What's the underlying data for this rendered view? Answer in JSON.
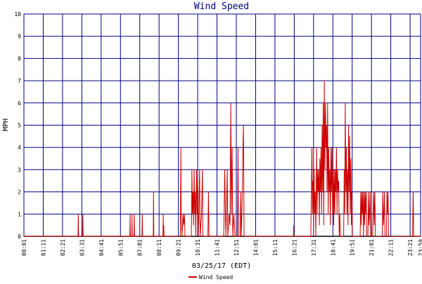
{
  "chart_data": {
    "type": "line",
    "title": "Wind Speed",
    "ylabel": "MPH",
    "xlabel": "03/25/17 (EDT)",
    "ylim": [
      0,
      10
    ],
    "yticks": [
      "0",
      "1",
      "2",
      "3",
      "4",
      "5",
      "6",
      "7",
      "8",
      "9",
      "10"
    ],
    "x_start": "00:01",
    "x_end": "23:59",
    "xticks": [
      "00:01",
      "01:11",
      "02:21",
      "03:31",
      "04:41",
      "05:51",
      "07:01",
      "08:11",
      "09:21",
      "10:31",
      "11:41",
      "12:51",
      "14:01",
      "15:11",
      "16:21",
      "17:31",
      "18:41",
      "19:51",
      "21:01",
      "22:11",
      "23:21",
      "23:59"
    ],
    "grid": true,
    "legend_position": "bottom-center",
    "colors": {
      "series": "#cc0000",
      "grid": "#000080",
      "axis": "#000000",
      "title": "#000080"
    },
    "series": [
      {
        "name": "Wind Speed",
        "points": [
          [
            "00:01",
            0
          ],
          [
            "03:17",
            0
          ],
          [
            "03:18",
            1
          ],
          [
            "03:19",
            0
          ],
          [
            "03:34",
            0
          ],
          [
            "03:35",
            1
          ],
          [
            "03:36",
            0
          ],
          [
            "06:25",
            0
          ],
          [
            "06:26",
            1
          ],
          [
            "06:27",
            0
          ],
          [
            "06:32",
            0
          ],
          [
            "06:33",
            1
          ],
          [
            "06:34",
            0
          ],
          [
            "06:40",
            0
          ],
          [
            "06:41",
            1
          ],
          [
            "06:42",
            0
          ],
          [
            "07:09",
            0
          ],
          [
            "07:10",
            1
          ],
          [
            "07:11",
            0
          ],
          [
            "07:50",
            0
          ],
          [
            "07:51",
            2
          ],
          [
            "07:52",
            0
          ],
          [
            "08:25",
            0
          ],
          [
            "08:26",
            1
          ],
          [
            "08:27",
            0
          ],
          [
            "08:28",
            0.5
          ],
          [
            "08:29",
            0
          ],
          [
            "09:28",
            0
          ],
          [
            "09:29",
            2
          ],
          [
            "09:30",
            4
          ],
          [
            "09:31",
            1
          ],
          [
            "09:34",
            0
          ],
          [
            "09:38",
            1
          ],
          [
            "09:40",
            0.5
          ],
          [
            "09:43",
            1
          ],
          [
            "09:45",
            0
          ],
          [
            "10:08",
            0
          ],
          [
            "10:10",
            3
          ],
          [
            "10:12",
            1
          ],
          [
            "10:14",
            2
          ],
          [
            "10:16",
            0.5
          ],
          [
            "10:18",
            3
          ],
          [
            "10:20",
            1
          ],
          [
            "10:22",
            2
          ],
          [
            "10:24",
            0
          ],
          [
            "10:27",
            3
          ],
          [
            "10:29",
            1
          ],
          [
            "10:31",
            2.5
          ],
          [
            "10:33",
            0
          ],
          [
            "10:35",
            1
          ],
          [
            "10:38",
            3
          ],
          [
            "10:40",
            0
          ],
          [
            "10:45",
            1
          ],
          [
            "10:48",
            3
          ],
          [
            "10:50",
            0
          ],
          [
            "11:08",
            0
          ],
          [
            "11:10",
            2
          ],
          [
            "11:12",
            0
          ],
          [
            "12:05",
            0
          ],
          [
            "12:07",
            1
          ],
          [
            "12:09",
            3
          ],
          [
            "12:11",
            1.5
          ],
          [
            "12:13",
            0
          ],
          [
            "12:15",
            1
          ],
          [
            "12:18",
            3
          ],
          [
            "12:20",
            0
          ],
          [
            "12:25",
            1
          ],
          [
            "12:28",
            0.5
          ],
          [
            "12:31",
            6
          ],
          [
            "12:33",
            1
          ],
          [
            "12:36",
            4
          ],
          [
            "12:38",
            0
          ],
          [
            "12:42",
            1
          ],
          [
            "12:44",
            0.5
          ],
          [
            "12:46",
            0
          ],
          [
            "12:55",
            0
          ],
          [
            "12:57",
            4
          ],
          [
            "12:59",
            0
          ],
          [
            "13:05",
            0
          ],
          [
            "13:07",
            2
          ],
          [
            "13:09",
            0
          ],
          [
            "13:13",
            2
          ],
          [
            "13:15",
            4
          ],
          [
            "13:17",
            5
          ],
          [
            "13:19",
            0
          ],
          [
            "16:18",
            0
          ],
          [
            "16:19",
            0.5
          ],
          [
            "16:20",
            0
          ],
          [
            "17:21",
            0
          ],
          [
            "17:23",
            2
          ],
          [
            "17:25",
            4
          ],
          [
            "17:27",
            1
          ],
          [
            "17:29",
            2.5
          ],
          [
            "17:31",
            0.5
          ],
          [
            "17:33",
            3
          ],
          [
            "17:35",
            1
          ],
          [
            "17:37",
            2
          ],
          [
            "17:39",
            0
          ],
          [
            "17:42",
            4
          ],
          [
            "17:44",
            1
          ],
          [
            "17:46",
            3
          ],
          [
            "17:48",
            2
          ],
          [
            "17:50",
            3
          ],
          [
            "17:52",
            0.5
          ],
          [
            "17:54",
            3.5
          ],
          [
            "17:56",
            2
          ],
          [
            "17:58",
            4
          ],
          [
            "18:00",
            1
          ],
          [
            "18:02",
            5
          ],
          [
            "18:04",
            2
          ],
          [
            "18:06",
            6
          ],
          [
            "18:08",
            0.5
          ],
          [
            "18:10",
            7
          ],
          [
            "18:12",
            3
          ],
          [
            "18:14",
            6
          ],
          [
            "18:16",
            4
          ],
          [
            "18:18",
            5
          ],
          [
            "18:20",
            2
          ],
          [
            "18:22",
            6
          ],
          [
            "18:24",
            1
          ],
          [
            "18:26",
            4
          ],
          [
            "18:28",
            2
          ],
          [
            "18:30",
            3
          ],
          [
            "18:32",
            0.5
          ],
          [
            "18:34",
            4
          ],
          [
            "18:36",
            2
          ],
          [
            "18:38",
            4
          ],
          [
            "18:40",
            1
          ],
          [
            "18:42",
            3
          ],
          [
            "18:44",
            0.5
          ],
          [
            "18:46",
            3
          ],
          [
            "18:48",
            1
          ],
          [
            "18:50",
            3
          ],
          [
            "18:52",
            2
          ],
          [
            "18:54",
            4
          ],
          [
            "18:56",
            1
          ],
          [
            "18:58",
            3
          ],
          [
            "19:00",
            2
          ],
          [
            "19:02",
            2.5
          ],
          [
            "19:04",
            0
          ],
          [
            "19:06",
            1
          ],
          [
            "19:08",
            0
          ],
          [
            "19:20",
            0
          ],
          [
            "19:22",
            3
          ],
          [
            "19:24",
            1
          ],
          [
            "19:26",
            6
          ],
          [
            "19:28",
            2
          ],
          [
            "19:30",
            4
          ],
          [
            "19:32",
            1
          ],
          [
            "19:34",
            3
          ],
          [
            "19:36",
            0.5
          ],
          [
            "19:38",
            5
          ],
          [
            "19:40",
            2
          ],
          [
            "19:42",
            4.5
          ],
          [
            "19:44",
            1
          ],
          [
            "19:46",
            3.5
          ],
          [
            "19:48",
            0.5
          ],
          [
            "19:50",
            2
          ],
          [
            "19:52",
            0
          ],
          [
            "20:20",
            0
          ],
          [
            "20:22",
            2
          ],
          [
            "20:24",
            0.5
          ],
          [
            "20:26",
            2
          ],
          [
            "20:28",
            1
          ],
          [
            "20:30",
            2
          ],
          [
            "20:32",
            0
          ],
          [
            "20:34",
            2
          ],
          [
            "20:36",
            0.5
          ],
          [
            "20:38",
            2
          ],
          [
            "20:40",
            1
          ],
          [
            "20:42",
            2
          ],
          [
            "20:44",
            0
          ],
          [
            "20:48",
            0
          ],
          [
            "20:50",
            2
          ],
          [
            "20:52",
            0.5
          ],
          [
            "20:54",
            1
          ],
          [
            "20:56",
            2
          ],
          [
            "20:58",
            0
          ],
          [
            "21:05",
            0
          ],
          [
            "21:07",
            1
          ],
          [
            "21:09",
            2
          ],
          [
            "21:11",
            0.5
          ],
          [
            "21:13",
            2
          ],
          [
            "21:15",
            0
          ],
          [
            "21:40",
            0
          ],
          [
            "21:42",
            2
          ],
          [
            "21:44",
            0.5
          ],
          [
            "21:46",
            1
          ],
          [
            "21:48",
            2
          ],
          [
            "21:50",
            0
          ],
          [
            "21:55",
            0
          ],
          [
            "21:57",
            2
          ],
          [
            "21:59",
            1
          ],
          [
            "22:01",
            2
          ],
          [
            "22:03",
            0
          ],
          [
            "23:30",
            0
          ],
          [
            "23:32",
            2
          ],
          [
            "23:34",
            0
          ],
          [
            "23:59",
            0
          ]
        ]
      }
    ]
  }
}
